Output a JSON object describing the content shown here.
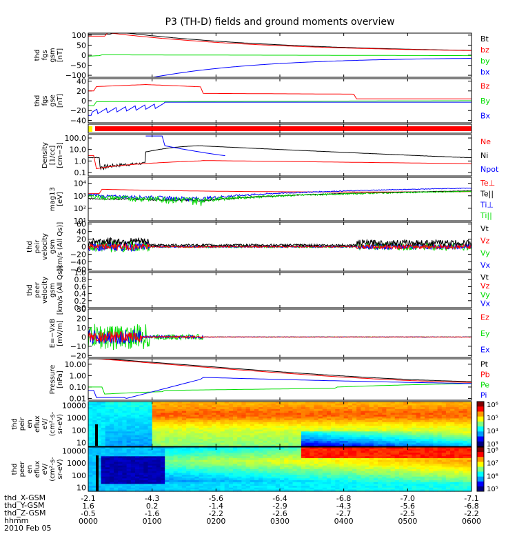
{
  "title": "P3 (TH-D) fields and ground moments overview",
  "colors": {
    "black": "#000000",
    "red": "#ff0000",
    "green": "#00dd00",
    "blue": "#0000ff",
    "yellow": "#ffff00"
  },
  "chart_data": [
    {
      "type": "line",
      "ylabel": [
        "thd",
        "fgs",
        "gsm",
        "[nT]"
      ],
      "yticks": [
        "100",
        "50",
        "0",
        "−50",
        "−100"
      ],
      "ylim": [
        -110,
        110
      ],
      "tickvals": [
        100,
        50,
        0,
        -50,
        -100
      ],
      "legend": [
        {
          "text": "Bt",
          "color": "black"
        },
        {
          "text": "bz",
          "color": "red"
        },
        {
          "text": "by",
          "color": "green"
        },
        {
          "text": "bx",
          "color": "blue"
        }
      ]
    },
    {
      "type": "line",
      "ylabel": [
        "thd",
        "fgs",
        "gse",
        "[nT]"
      ],
      "yticks": [
        "40",
        "20",
        "0",
        "−20",
        "−40"
      ],
      "ylim": [
        -45,
        45
      ],
      "tickvals": [
        40,
        20,
        0,
        -20,
        -40
      ],
      "legend": [
        {
          "text": "Bz",
          "color": "red"
        },
        {
          "text": "By",
          "color": "green"
        },
        {
          "text": "Bx",
          "color": "blue"
        }
      ]
    },
    {
      "type": "bar",
      "ylabel": [],
      "yticks": [],
      "legend": []
    },
    {
      "type": "line",
      "ylabel": [
        "Density",
        "[1/cc]",
        "[cm−3]"
      ],
      "yticks": [
        "100.0",
        "10.0",
        "1.0",
        "0.1"
      ],
      "ylim": [
        0.05,
        200
      ],
      "tickvals": [
        100,
        10,
        1,
        0.1
      ],
      "log": true,
      "legend": [
        {
          "text": "Ne",
          "color": "red"
        },
        {
          "text": "Ni",
          "color": "black"
        },
        {
          "text": "Npot",
          "color": "blue"
        }
      ]
    },
    {
      "type": "line",
      "ylabel": [
        "mag13",
        "[eV]"
      ],
      "yticks": [
        "10⁴",
        "10³",
        "10²",
        "10¹"
      ],
      "ylim": [
        10,
        30000
      ],
      "tickvals": [
        10000,
        1000,
        100,
        10
      ],
      "log": true,
      "legend": [
        {
          "text": "Te⊥",
          "color": "red"
        },
        {
          "text": "Te||",
          "color": "black"
        },
        {
          "text": "Ti⊥",
          "color": "blue"
        },
        {
          "text": "Ti||",
          "color": "green"
        }
      ]
    },
    {
      "type": "line",
      "ylabel": [
        "thd",
        "peir",
        "velocity",
        "gsm",
        "[km/s (All Qs)]"
      ],
      "yticks": [
        "60",
        "40",
        "20",
        "0",
        "−20",
        "−40",
        "−60"
      ],
      "ylim": [
        -65,
        65
      ],
      "tickvals": [
        60,
        40,
        20,
        0,
        -20,
        -40,
        -60
      ],
      "legend": [
        {
          "text": "Vt",
          "color": "black"
        },
        {
          "text": "Vz",
          "color": "red"
        },
        {
          "text": "Vy",
          "color": "green"
        },
        {
          "text": "Vx",
          "color": "blue"
        }
      ]
    },
    {
      "type": "line",
      "ylabel": [
        "thd",
        "peer",
        "velocity",
        "gsm",
        "[km/s (All Qs)]"
      ],
      "yticks": [
        "1.0",
        "0.8",
        "0.6",
        "0.4",
        "0.2",
        "0.0"
      ],
      "ylim": [
        0,
        1
      ],
      "tickvals": [
        1,
        0.8,
        0.6,
        0.4,
        0.2,
        0
      ],
      "legend": [
        {
          "text": "Vt",
          "color": "black"
        },
        {
          "text": "Vz",
          "color": "red"
        },
        {
          "text": "Vy",
          "color": "green"
        },
        {
          "text": "Vx",
          "color": "blue"
        }
      ]
    },
    {
      "type": "line",
      "ylabel": [
        "E=−VxB",
        "[mV/m]"
      ],
      "yticks": [
        "30",
        "20",
        "10",
        "0",
        "−10",
        "−20"
      ],
      "ylim": [
        -22,
        30
      ],
      "tickvals": [
        30,
        20,
        10,
        0,
        -10,
        -20
      ],
      "legend": [
        {
          "text": "Ez",
          "color": "red"
        },
        {
          "text": "Ey",
          "color": "green"
        },
        {
          "text": "Ex",
          "color": "blue"
        }
      ]
    },
    {
      "type": "line",
      "ylabel": [
        "Pressure",
        "[nPa]"
      ],
      "yticks": [
        "10.00",
        "1.00",
        "0.10",
        "0.01"
      ],
      "ylim": [
        0.007,
        30
      ],
      "tickvals": [
        10,
        1,
        0.1,
        0.01
      ],
      "log": true,
      "legend": [
        {
          "text": "Pt",
          "color": "black"
        },
        {
          "text": "Pb",
          "color": "red"
        },
        {
          "text": "Pe",
          "color": "green"
        },
        {
          "text": "Pi",
          "color": "blue"
        }
      ]
    },
    {
      "type": "heatmap",
      "ylabel": [
        "thd",
        "peir",
        "en",
        "eflux",
        "eV/",
        "(cm²-s-",
        "sr-eV)"
      ],
      "yticks": [
        "10000",
        "1000",
        "100",
        "10"
      ],
      "ylim": [
        5,
        20000
      ],
      "tickvals": [
        10000,
        1000,
        100,
        10
      ],
      "log": true,
      "colorbar": [
        "10⁶",
        "10⁵",
        "10⁴",
        "10³"
      ],
      "legend": []
    },
    {
      "type": "heatmap",
      "ylabel": [
        "thd",
        "peer",
        "en",
        "eflux",
        "eV/",
        "(cm²-s-",
        "sr-eV)"
      ],
      "yticks": [
        "10000",
        "1000",
        "100",
        "10"
      ],
      "ylim": [
        5,
        20000
      ],
      "tickvals": [
        10000,
        1000,
        100,
        10
      ],
      "log": true,
      "colorbar": [
        "10⁸",
        "10⁷",
        "10⁶",
        "10⁵"
      ],
      "legend": []
    }
  ],
  "xaxis": {
    "labels": [
      "thd_X-GSM",
      "thd_Y-GSM",
      "thd_Z-GSM",
      "hhmm",
      "2010 Feb 05"
    ],
    "columns": [
      {
        "x": "-2.1",
        "y": "1.6",
        "z": "-0.5",
        "t": "0000"
      },
      {
        "x": "-4.3",
        "y": "0.2",
        "z": "-1.6",
        "t": "0100"
      },
      {
        "x": "-5.6",
        "y": "-1.4",
        "z": "-2.2",
        "t": "0200"
      },
      {
        "x": "-6.4",
        "y": "-2.9",
        "z": "-2.6",
        "t": "0300"
      },
      {
        "x": "-6.8",
        "y": "-4.3",
        "z": "-2.7",
        "t": "0400"
      },
      {
        "x": "-7.0",
        "y": "-5.6",
        "z": "-2.5",
        "t": "0500"
      },
      {
        "x": "-7.1",
        "y": "-6.8",
        "z": "-2.2",
        "t": "0600"
      }
    ]
  }
}
